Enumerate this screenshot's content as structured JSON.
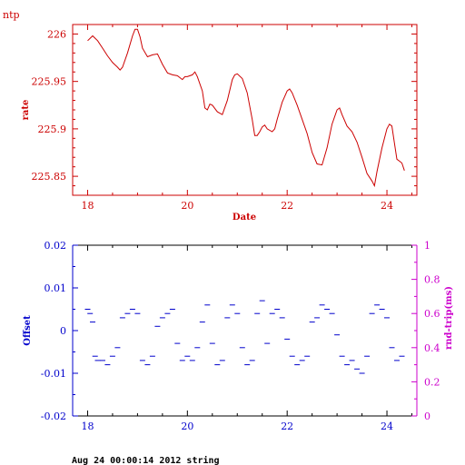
{
  "page": {
    "corner_title": "ntp",
    "footer": "Aug 24 00:00:14 2012 string"
  },
  "colors": {
    "top": "#cc0000",
    "offset": "#0000cc",
    "rtt": "#cc00cc",
    "frame": "#000000"
  },
  "chart_data": [
    {
      "type": "line",
      "title": "",
      "xlabel": "Date",
      "ylabel": "rate",
      "xlim": [
        17.7,
        24.6
      ],
      "ylim": [
        225.83,
        226.01
      ],
      "xticks": [
        18,
        20,
        22,
        24
      ],
      "yticks": [
        225.85,
        225.9,
        225.95,
        226
      ],
      "ytick_labels": [
        "225.85",
        "225.9",
        "225.95",
        "226"
      ],
      "grid": false,
      "series": [
        {
          "values": [
            [
              18.0,
              225.993
            ],
            [
              18.1,
              225.998
            ],
            [
              18.2,
              225.993
            ],
            [
              18.3,
              225.985
            ],
            [
              18.4,
              225.977
            ],
            [
              18.5,
              225.97
            ],
            [
              18.6,
              225.965
            ],
            [
              18.65,
              225.962
            ],
            [
              18.7,
              225.965
            ],
            [
              18.8,
              225.98
            ],
            [
              18.9,
              225.998
            ],
            [
              18.95,
              226.005
            ],
            [
              19.0,
              226.005
            ],
            [
              19.05,
              225.997
            ],
            [
              19.1,
              225.985
            ],
            [
              19.2,
              225.976
            ],
            [
              19.3,
              225.978
            ],
            [
              19.4,
              225.979
            ],
            [
              19.5,
              225.968
            ],
            [
              19.6,
              225.959
            ],
            [
              19.7,
              225.957
            ],
            [
              19.8,
              225.956
            ],
            [
              19.9,
              225.952
            ],
            [
              19.95,
              225.955
            ],
            [
              20.0,
              225.955
            ],
            [
              20.1,
              225.957
            ],
            [
              20.15,
              225.96
            ],
            [
              20.2,
              225.955
            ],
            [
              20.3,
              225.94
            ],
            [
              20.35,
              225.922
            ],
            [
              20.4,
              225.92
            ],
            [
              20.45,
              225.926
            ],
            [
              20.5,
              225.925
            ],
            [
              20.6,
              225.918
            ],
            [
              20.7,
              225.915
            ],
            [
              20.8,
              225.93
            ],
            [
              20.9,
              225.952
            ],
            [
              20.95,
              225.957
            ],
            [
              21.0,
              225.958
            ],
            [
              21.1,
              225.953
            ],
            [
              21.2,
              225.938
            ],
            [
              21.3,
              225.91
            ],
            [
              21.35,
              225.893
            ],
            [
              21.4,
              225.893
            ],
            [
              21.45,
              225.897
            ],
            [
              21.5,
              225.902
            ],
            [
              21.55,
              225.904
            ],
            [
              21.6,
              225.9
            ],
            [
              21.7,
              225.897
            ],
            [
              21.75,
              225.9
            ],
            [
              21.8,
              225.91
            ],
            [
              21.9,
              225.928
            ],
            [
              22.0,
              225.94
            ],
            [
              22.05,
              225.942
            ],
            [
              22.1,
              225.938
            ],
            [
              22.2,
              225.925
            ],
            [
              22.3,
              225.91
            ],
            [
              22.4,
              225.895
            ],
            [
              22.5,
              225.875
            ],
            [
              22.6,
              225.863
            ],
            [
              22.7,
              225.862
            ],
            [
              22.8,
              225.88
            ],
            [
              22.9,
              225.905
            ],
            [
              23.0,
              225.92
            ],
            [
              23.05,
              225.922
            ],
            [
              23.1,
              225.915
            ],
            [
              23.2,
              225.903
            ],
            [
              23.3,
              225.897
            ],
            [
              23.4,
              225.886
            ],
            [
              23.5,
              225.87
            ],
            [
              23.6,
              225.853
            ],
            [
              23.7,
              225.845
            ],
            [
              23.75,
              225.84
            ],
            [
              23.8,
              225.855
            ],
            [
              23.9,
              225.88
            ],
            [
              24.0,
              225.9
            ],
            [
              24.05,
              225.905
            ],
            [
              24.1,
              225.903
            ],
            [
              24.15,
              225.885
            ],
            [
              24.2,
              225.868
            ],
            [
              24.25,
              225.866
            ],
            [
              24.3,
              225.864
            ],
            [
              24.35,
              225.856
            ]
          ]
        }
      ]
    },
    {
      "type": "scatter",
      "title": "",
      "xlabel": "",
      "ylabel": "Offset",
      "ylabel_right": "rnd-trip(ms)",
      "xlim": [
        17.7,
        24.6
      ],
      "ylim": [
        -0.02,
        0.02
      ],
      "ylim_right": [
        0,
        1
      ],
      "xticks": [
        18,
        20,
        22,
        24
      ],
      "yticks": [
        -0.02,
        -0.01,
        0,
        0.01,
        0.02
      ],
      "ytick_labels": [
        "-0.02",
        "-0.01",
        "0",
        "0.01",
        "0.02"
      ],
      "yticks_right": [
        0,
        0.2,
        0.4,
        0.6,
        0.8,
        1
      ],
      "ytick_labels_right": [
        "0",
        "0.2",
        "0.4",
        "0.6",
        "0.8",
        "1"
      ],
      "grid": false,
      "series": [
        {
          "name": "Offset",
          "x_start": 18.0,
          "x_end": 24.3,
          "step": 0.05,
          "values": [
            [
              18.0,
              0.005
            ],
            [
              18.05,
              0.004
            ],
            [
              18.1,
              0.002
            ],
            [
              18.15,
              -0.006
            ],
            [
              18.2,
              -0.007
            ],
            [
              18.3,
              -0.007
            ],
            [
              18.4,
              -0.008
            ],
            [
              18.5,
              -0.006
            ],
            [
              18.6,
              -0.004
            ],
            [
              18.7,
              0.003
            ],
            [
              18.8,
              0.004
            ],
            [
              18.9,
              0.005
            ],
            [
              19.0,
              0.004
            ],
            [
              19.1,
              -0.007
            ],
            [
              19.2,
              -0.008
            ],
            [
              19.3,
              -0.006
            ],
            [
              19.4,
              0.001
            ],
            [
              19.5,
              0.003
            ],
            [
              19.6,
              0.004
            ],
            [
              19.7,
              0.005
            ],
            [
              19.8,
              -0.003
            ],
            [
              19.9,
              -0.007
            ],
            [
              20.0,
              -0.006
            ],
            [
              20.1,
              -0.007
            ],
            [
              20.2,
              -0.004
            ],
            [
              20.3,
              0.002
            ],
            [
              20.4,
              0.006
            ],
            [
              20.5,
              -0.003
            ],
            [
              20.6,
              -0.008
            ],
            [
              20.7,
              -0.007
            ],
            [
              20.8,
              0.003
            ],
            [
              20.9,
              0.006
            ],
            [
              21.0,
              0.004
            ],
            [
              21.1,
              -0.004
            ],
            [
              21.2,
              -0.008
            ],
            [
              21.3,
              -0.007
            ],
            [
              21.4,
              0.004
            ],
            [
              21.5,
              0.007
            ],
            [
              21.6,
              -0.003
            ],
            [
              21.7,
              0.004
            ],
            [
              21.8,
              0.005
            ],
            [
              21.9,
              0.003
            ],
            [
              22.0,
              -0.002
            ],
            [
              22.1,
              -0.006
            ],
            [
              22.2,
              -0.008
            ],
            [
              22.3,
              -0.007
            ],
            [
              22.4,
              -0.006
            ],
            [
              22.5,
              0.002
            ],
            [
              22.6,
              0.003
            ],
            [
              22.7,
              0.006
            ],
            [
              22.8,
              0.005
            ],
            [
              22.9,
              0.004
            ],
            [
              23.0,
              -0.001
            ],
            [
              23.1,
              -0.006
            ],
            [
              23.2,
              -0.008
            ],
            [
              23.3,
              -0.007
            ],
            [
              23.4,
              -0.009
            ],
            [
              23.5,
              -0.01
            ],
            [
              23.6,
              -0.006
            ],
            [
              23.7,
              0.004
            ],
            [
              23.8,
              0.006
            ],
            [
              23.9,
              0.005
            ],
            [
              24.0,
              0.003
            ],
            [
              24.1,
              -0.004
            ],
            [
              24.2,
              -0.007
            ],
            [
              24.3,
              -0.006
            ]
          ]
        },
        {
          "name": "rnd-trip(ms)",
          "values": []
        }
      ]
    }
  ]
}
